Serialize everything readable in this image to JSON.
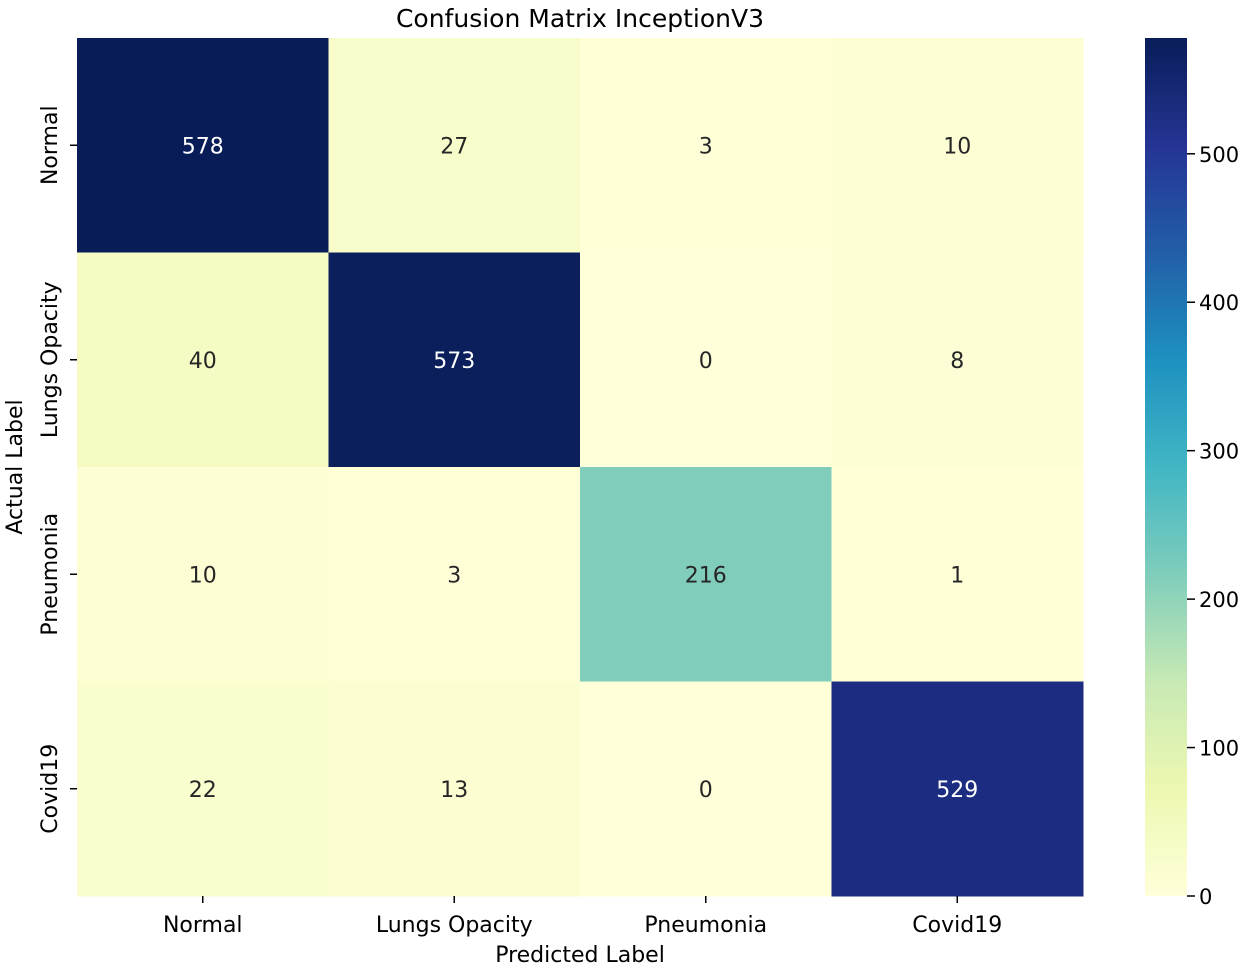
{
  "chart_data": {
    "type": "heatmap",
    "title": "Confusion Matrix InceptionV3",
    "xlabel": "Predicted Label",
    "ylabel": "Actual Label",
    "x_categories": [
      "Normal",
      "Lungs Opacity",
      "Pneumonia",
      "Covid19"
    ],
    "y_categories": [
      "Normal",
      "Lungs Opacity",
      "Pneumonia",
      "Covid19"
    ],
    "values": [
      [
        578,
        27,
        3,
        10
      ],
      [
        40,
        573,
        0,
        8
      ],
      [
        10,
        3,
        216,
        1
      ],
      [
        22,
        13,
        0,
        529
      ]
    ],
    "colormap": "YlGnBu",
    "colorbar": {
      "range": [
        0,
        578
      ],
      "ticks": [
        0,
        100,
        200,
        300,
        400,
        500
      ]
    }
  }
}
